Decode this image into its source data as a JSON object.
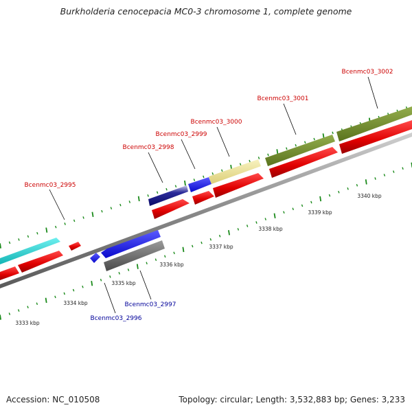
{
  "header": {
    "title": "Burkholderia cenocepacia MC0-3 chromosome 1, complete genome"
  },
  "footer": {
    "accession": "Accession: NC_010508",
    "topology": "Topology: circular; Length: 3,532,883 bp; Genes: 3,233"
  },
  "colors": {
    "forward_label": "#cc0000",
    "reverse_label": "#000099",
    "cds": "#ee0000",
    "backbone": "#888888",
    "ticks": "#1a8a1a",
    "teal_gene": "#22cccc",
    "blue_gene": "#1a1aee",
    "khaki_gene": "#ece29a",
    "olive_gene": "#6f8b2a",
    "gray_gene": "#666666"
  },
  "scale_labels": [
    "3333 kbp",
    "3334 kbp",
    "3335 kbp",
    "3336 kbp",
    "3337 kbp",
    "3338 kbp",
    "3339 kbp",
    "3340 kbp"
  ],
  "forward_gene_labels": [
    "Bcenmc03_2995",
    "Bcenmc03_2998",
    "Bcenmc03_2999",
    "Bcenmc03_3000",
    "Bcenmc03_3001",
    "Bcenmc03_3002"
  ],
  "reverse_gene_labels": [
    "Bcenmc03_2996",
    "Bcenmc03_2997"
  ]
}
